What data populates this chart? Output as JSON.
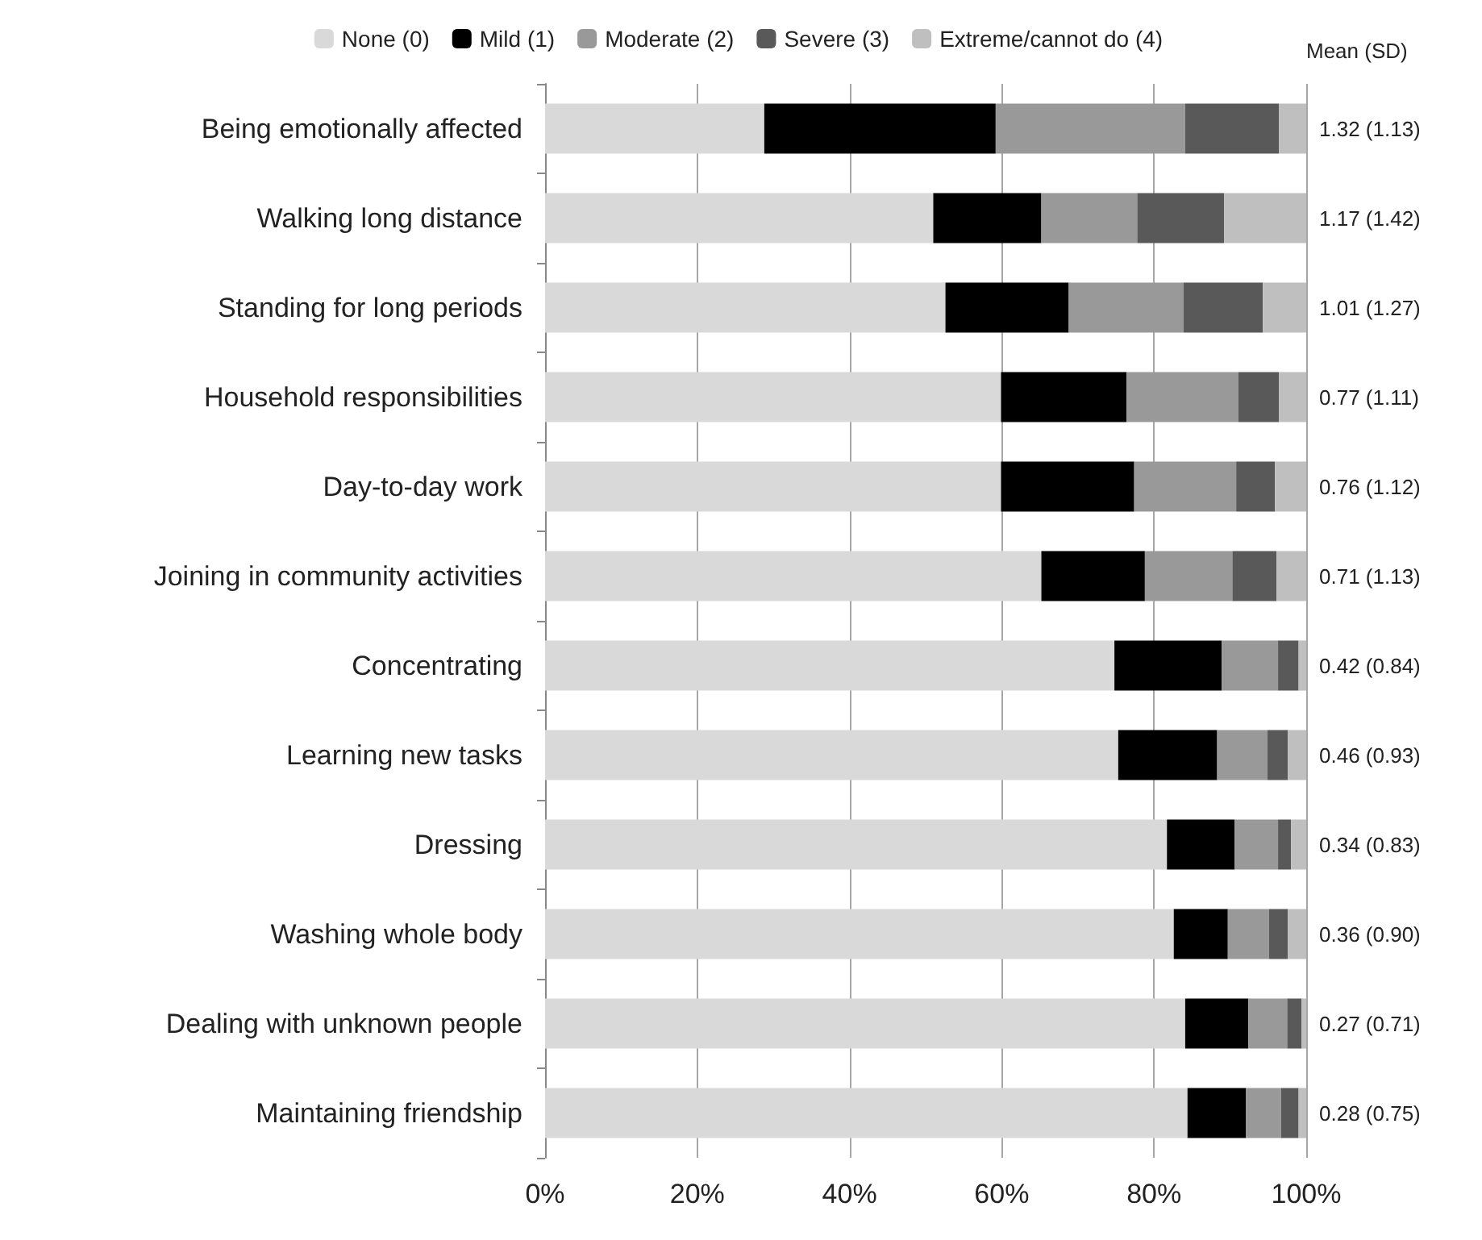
{
  "chart_data": {
    "type": "bar",
    "orientation": "horizontal",
    "stacked": true,
    "categories": [
      "Being emotionally affected",
      "Walking long distance",
      "Standing for long periods",
      "Household responsibilities",
      "Day-to-day work",
      "Joining in community activities",
      "Concentrating",
      "Learning new tasks",
      "Dressing",
      "Washing whole body",
      "Dealing with unknown people",
      "Maintaining friendship"
    ],
    "series": [
      {
        "name": "None (0)",
        "color": "#d9d9d9",
        "values": [
          28.8,
          51.0,
          52.6,
          59.9,
          59.9,
          65.2,
          74.8,
          75.3,
          81.7,
          82.6,
          84.1,
          84.4
        ]
      },
      {
        "name": "Mild (1)",
        "color": "#000000",
        "values": [
          30.4,
          14.2,
          16.2,
          16.5,
          17.5,
          13.6,
          14.1,
          13.0,
          8.9,
          7.1,
          8.3,
          7.7
        ]
      },
      {
        "name": "Moderate (2)",
        "color": "#999999",
        "values": [
          24.9,
          12.6,
          15.1,
          14.7,
          13.4,
          11.5,
          7.4,
          6.6,
          5.7,
          5.4,
          5.1,
          4.6
        ]
      },
      {
        "name": "Severe (3)",
        "color": "#595959",
        "values": [
          12.3,
          11.4,
          10.4,
          5.3,
          5.1,
          5.8,
          2.7,
          2.7,
          1.7,
          2.5,
          1.9,
          2.3
        ]
      },
      {
        "name": "Extreme/cannot do (4)",
        "color": "#bfbfbf",
        "values": [
          3.6,
          10.8,
          5.7,
          3.6,
          4.1,
          3.9,
          1.0,
          2.4,
          2.0,
          2.4,
          0.6,
          1.0
        ]
      }
    ],
    "xlim": [
      0,
      100
    ],
    "xticks": [
      {
        "value": 0,
        "label": "0%"
      },
      {
        "value": 20,
        "label": "20%"
      },
      {
        "value": 40,
        "label": "40%"
      },
      {
        "value": 60,
        "label": "60%"
      },
      {
        "value": 80,
        "label": "80%"
      },
      {
        "value": 100,
        "label": "100%"
      }
    ],
    "grid": "x",
    "legend": "top",
    "annotations": [
      "Mean (SD)",
      "1.32 (1.13)",
      "1.17 (1.42)",
      "1.01 (1.27)",
      "0.77 (1.11)",
      "0.76 (1.12)",
      "0.71 (1.13)",
      "0.42 (0.84)",
      "0.46 (0.93)",
      "0.34 (0.83)",
      "0.36 (0.90)",
      "0.27 (0.71)",
      "0.28 (0.75)"
    ]
  }
}
